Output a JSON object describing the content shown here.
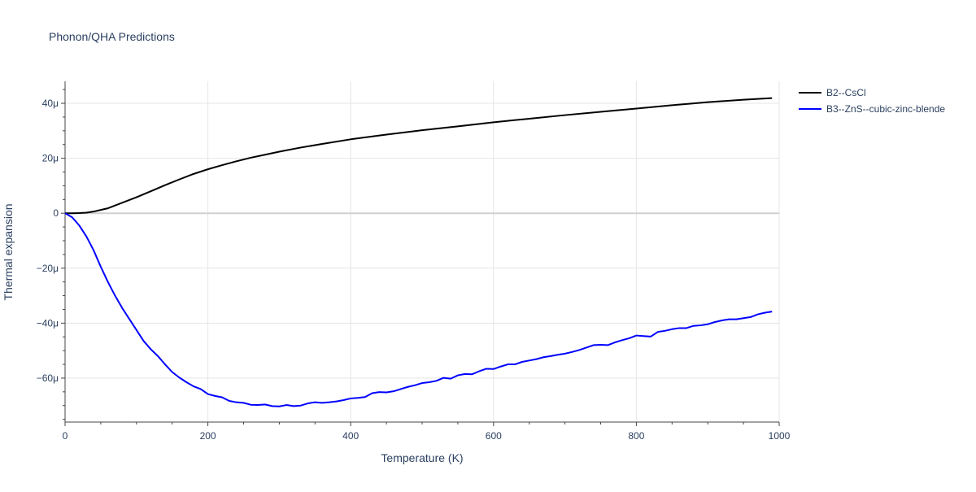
{
  "chart_data": {
    "type": "line",
    "title": "Phonon/QHA Predictions",
    "xlabel": "Temperature (K)",
    "ylabel": "Thermal expansion",
    "xlim": [
      0,
      1000
    ],
    "ylim": [
      -76,
      48
    ],
    "y_unit_suffix": "μ",
    "xticks": [
      0,
      200,
      400,
      600,
      800,
      1000
    ],
    "yticks": [
      -60,
      -40,
      -20,
      0,
      20,
      40
    ],
    "grid": true,
    "legend_position": "top-right",
    "series": [
      {
        "name": "B2--CsCl",
        "color": "#000000",
        "x": [
          0,
          10,
          20,
          30,
          40,
          50,
          60,
          70,
          80,
          90,
          100,
          120,
          140,
          160,
          180,
          200,
          220,
          240,
          260,
          280,
          300,
          330,
          360,
          400,
          450,
          500,
          550,
          600,
          650,
          700,
          750,
          800,
          850,
          900,
          950,
          990
        ],
        "y": [
          0,
          0,
          0.05,
          0.2,
          0.6,
          1.2,
          1.8,
          2.8,
          3.8,
          4.8,
          5.8,
          8.0,
          10.2,
          12.3,
          14.3,
          16.0,
          17.5,
          18.9,
          20.2,
          21.3,
          22.4,
          23.9,
          25.2,
          26.9,
          28.6,
          30.2,
          31.6,
          33.1,
          34.4,
          35.7,
          36.9,
          38.1,
          39.3,
          40.4,
          41.3,
          41.9
        ]
      },
      {
        "name": "B3--ZnS--cubic-zinc-blende",
        "color": "#0000ff",
        "x": [
          0,
          10,
          20,
          30,
          40,
          50,
          60,
          70,
          80,
          90,
          100,
          110,
          120,
          130,
          140,
          150,
          160,
          170,
          180,
          190,
          200,
          210,
          220,
          230,
          240,
          250,
          260,
          270,
          280,
          290,
          300,
          310,
          320,
          330,
          340,
          350,
          360,
          370,
          380,
          390,
          400,
          410,
          420,
          430,
          440,
          450,
          460,
          470,
          480,
          490,
          500,
          510,
          520,
          530,
          540,
          550,
          560,
          570,
          580,
          590,
          600,
          610,
          620,
          630,
          640,
          650,
          660,
          670,
          680,
          690,
          700,
          710,
          720,
          730,
          740,
          750,
          760,
          770,
          780,
          790,
          800,
          810,
          820,
          830,
          840,
          850,
          860,
          870,
          880,
          890,
          900,
          910,
          920,
          930,
          940,
          950,
          960,
          970,
          980,
          990
        ],
        "y": [
          0,
          -1.5,
          -4.5,
          -8.5,
          -13.5,
          -19.5,
          -25.0,
          -30.0,
          -34.5,
          -38.5,
          -42.5,
          -46.5,
          -49.5,
          -52.0,
          -55.0,
          -57.8,
          -59.8,
          -61.5,
          -63.0,
          -64.0,
          -65.8,
          -66.5,
          -67.0,
          -68.3,
          -68.8,
          -69.0,
          -69.7,
          -69.8,
          -69.6,
          -70.2,
          -70.3,
          -69.8,
          -70.2,
          -70.0,
          -69.2,
          -68.8,
          -69.0,
          -68.8,
          -68.5,
          -68.0,
          -67.4,
          -67.2,
          -66.9,
          -65.5,
          -65.1,
          -65.2,
          -64.8,
          -64.0,
          -63.2,
          -62.6,
          -61.8,
          -61.5,
          -61.0,
          -59.9,
          -60.2,
          -59.0,
          -58.5,
          -58.6,
          -57.5,
          -56.6,
          -56.7,
          -55.8,
          -55.0,
          -55.0,
          -54.1,
          -53.6,
          -53.1,
          -52.4,
          -52.0,
          -51.5,
          -51.1,
          -50.5,
          -49.8,
          -48.9,
          -48.0,
          -47.9,
          -48.0,
          -47.0,
          -46.2,
          -45.5,
          -44.5,
          -44.7,
          -44.9,
          -43.2,
          -42.8,
          -42.2,
          -41.8,
          -41.8,
          -41.0,
          -40.8,
          -40.4,
          -39.6,
          -39.0,
          -38.6,
          -38.6,
          -38.2,
          -37.8,
          -36.8,
          -36.2,
          -35.8
        ]
      }
    ]
  }
}
